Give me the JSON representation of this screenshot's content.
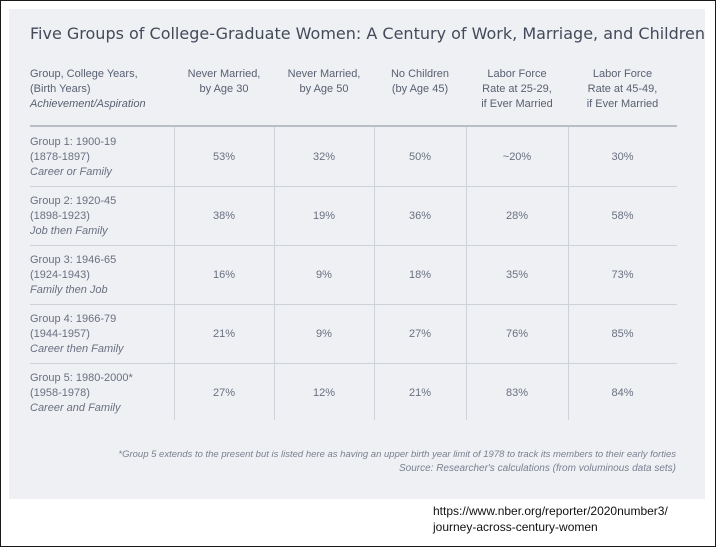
{
  "title": "Five Groups of College-Graduate Women: A Century of Work, Marriage, and Children",
  "headers": {
    "group": [
      "Group, College Years,",
      "(Birth Years)",
      "Achievement/Aspiration"
    ],
    "never_married_30": [
      "Never Married,",
      "by Age 30"
    ],
    "never_married_50": [
      "Never Married,",
      "by Age 50"
    ],
    "no_children": [
      "No Children",
      "(by Age 45)"
    ],
    "lfp_25_29": [
      "Labor Force",
      "Rate at 25-29,",
      "if Ever Married"
    ],
    "lfp_45_49": [
      "Labor Force",
      "Rate at 45-49,",
      "if Ever Married"
    ]
  },
  "rows": [
    {
      "group": "Group 1: 1900-19",
      "birth": "(1878-1897)",
      "aspiration": "Career or Family",
      "values": [
        "53%",
        "32%",
        "50%",
        "~20%",
        "30%"
      ]
    },
    {
      "group": "Group 2: 1920-45",
      "birth": "(1898-1923)",
      "aspiration": "Job then Family",
      "values": [
        "38%",
        "19%",
        "36%",
        "28%",
        "58%"
      ]
    },
    {
      "group": "Group 3: 1946-65",
      "birth": "(1924-1943)",
      "aspiration": "Family then Job",
      "values": [
        "16%",
        "9%",
        "18%",
        "35%",
        "73%"
      ]
    },
    {
      "group": "Group 4: 1966-79",
      "birth": "(1944-1957)",
      "aspiration": "Career then Family",
      "values": [
        "21%",
        "9%",
        "27%",
        "76%",
        "85%"
      ]
    },
    {
      "group": "Group 5: 1980-2000*",
      "birth": "(1958-1978)",
      "aspiration": "Career and Family",
      "values": [
        "27%",
        "12%",
        "21%",
        "83%",
        "84%"
      ]
    }
  ],
  "footnote": "*Group 5 extends to the present but is listed here as having an upper birth year limit of 1978 to track its members to their early forties",
  "source": "Source: Researcher's calculations (from voluminous data sets)",
  "url": [
    "https://www.nber.org/reporter/2020number3/",
    "journey-across-century-women"
  ]
}
